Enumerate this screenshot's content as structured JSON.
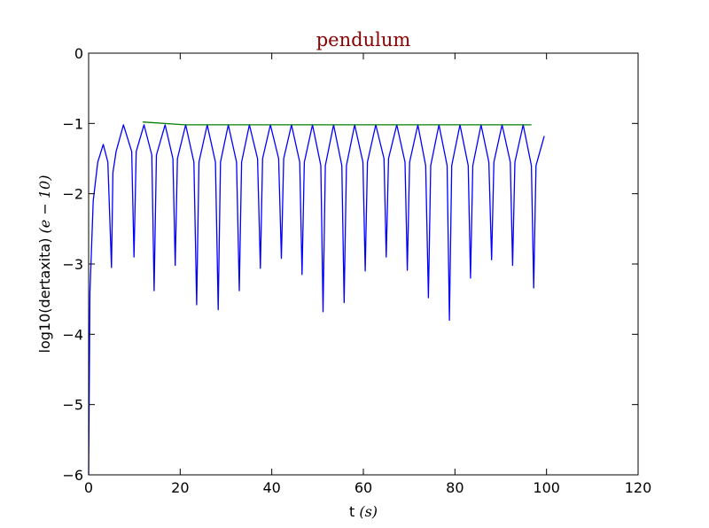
{
  "chart_data": {
    "type": "line",
    "title": "pendulum",
    "xlabel": "t",
    "xlabel_math": "(s)",
    "ylabel": "log10(dertaxita)",
    "ylabel_math": "(e − 10)",
    "xlim": [
      0,
      120
    ],
    "ylim": [
      -6,
      0
    ],
    "xticks": [
      0,
      20,
      40,
      60,
      80,
      100,
      120
    ],
    "yticks": [
      0,
      -1,
      -2,
      -3,
      -4,
      -5,
      -6
    ],
    "xtick_labels": [
      "0",
      "20",
      "40",
      "60",
      "80",
      "100",
      "120"
    ],
    "ytick_labels": [
      "0",
      "−1",
      "−2",
      "−3",
      "−4",
      "−5",
      "−6"
    ],
    "grid": false,
    "colors": {
      "title": "#8b0000",
      "series_blue": "#0000ff",
      "series_green": "#008000"
    },
    "series": [
      {
        "color": "#0000ff",
        "x": [
          0,
          0.3,
          1,
          2,
          3.2,
          4.2,
          5.0,
          5.3,
          6.0,
          7.6,
          9.4,
          9.9,
          10.4,
          12.1,
          13.8,
          14.3,
          14.8,
          16.7,
          18.4,
          18.9,
          19.4,
          21.2,
          23.0,
          23.6,
          24.1,
          25.9,
          27.7,
          28.3,
          28.8,
          30.5,
          32.3,
          32.9,
          33.4,
          35.1,
          36.9,
          37.5,
          38.0,
          39.7,
          41.5,
          42.1,
          42.6,
          44.3,
          46.1,
          46.6,
          47.1,
          48.9,
          50.7,
          51.2,
          51.7,
          53.5,
          55.3,
          55.8,
          56.3,
          58.1,
          59.9,
          60.4,
          60.9,
          62.7,
          64.5,
          65.0,
          65.5,
          67.3,
          69.1,
          69.6,
          70.1,
          71.9,
          73.6,
          74.2,
          74.7,
          76.5,
          78.3,
          78.8,
          79.3,
          81.1,
          82.9,
          83.4,
          83.9,
          85.7,
          87.4,
          88.0,
          88.5,
          90.3,
          92.1,
          92.6,
          93.1,
          94.9,
          96.7,
          97.2,
          97.7,
          99.5
        ],
        "y": [
          -6,
          -3.4,
          -2.1,
          -1.55,
          -1.3,
          -1.55,
          -3.05,
          -1.7,
          -1.4,
          -1.02,
          -1.4,
          -2.9,
          -1.4,
          -1.02,
          -1.45,
          -3.38,
          -1.45,
          -1.02,
          -1.5,
          -3.02,
          -1.5,
          -1.02,
          -1.55,
          -3.58,
          -1.55,
          -1.02,
          -1.55,
          -3.65,
          -1.55,
          -1.02,
          -1.55,
          -3.38,
          -1.55,
          -1.02,
          -1.5,
          -3.06,
          -1.5,
          -1.02,
          -1.5,
          -2.92,
          -1.5,
          -1.02,
          -1.55,
          -3.15,
          -1.55,
          -1.02,
          -1.6,
          -3.68,
          -1.6,
          -1.02,
          -1.6,
          -3.55,
          -1.6,
          -1.02,
          -1.55,
          -3.1,
          -1.55,
          -1.02,
          -1.5,
          -2.9,
          -1.5,
          -1.02,
          -1.55,
          -3.09,
          -1.55,
          -1.02,
          -1.6,
          -3.48,
          -1.6,
          -1.02,
          -1.6,
          -3.8,
          -1.6,
          -1.02,
          -1.6,
          -3.2,
          -1.6,
          -1.02,
          -1.55,
          -2.94,
          -1.55,
          -1.02,
          -1.55,
          -3.02,
          -1.55,
          -1.02,
          -1.6,
          -3.34,
          -1.6,
          -1.18
        ]
      },
      {
        "color": "#008000",
        "x": [
          11.8,
          21.0,
          96.7
        ],
        "y": [
          -0.98,
          -1.02,
          -1.02
        ]
      }
    ]
  }
}
